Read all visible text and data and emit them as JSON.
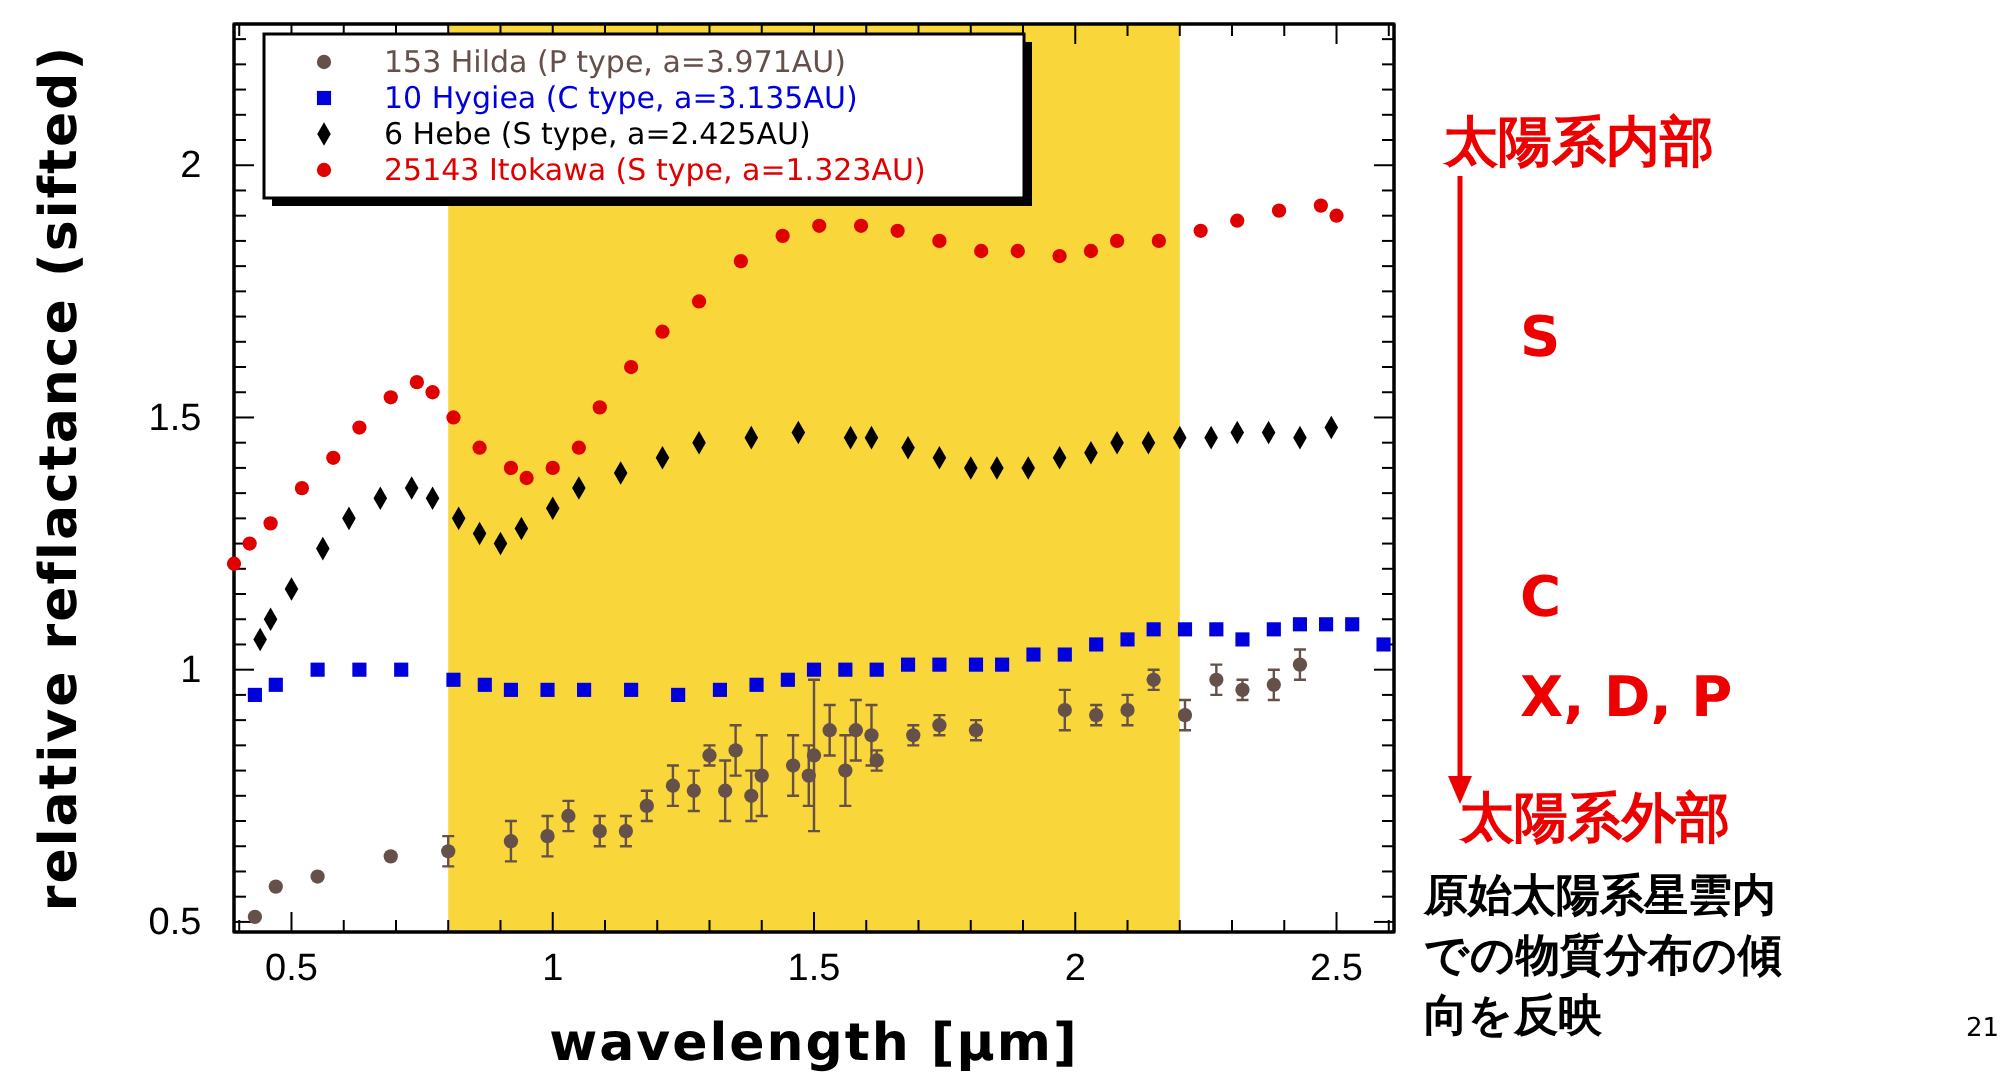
{
  "chart_data": {
    "type": "scatter",
    "xlabel": "wavelength [µm]",
    "ylabel": "relative reflactance (sifted)",
    "xlim": [
      0.39,
      2.61
    ],
    "ylim": [
      0.48,
      2.28
    ],
    "xticks": [
      {
        "value": 0.4,
        "label": null
      },
      0.5,
      {
        "value": 0.6,
        "label": null
      },
      {
        "value": 0.7,
        "label": null
      },
      {
        "value": 0.8,
        "label": null
      },
      {
        "value": 0.9,
        "label": null
      },
      1,
      {
        "value": 1.1,
        "label": null
      },
      {
        "value": 1.2,
        "label": null
      },
      {
        "value": 1.3,
        "label": null
      },
      {
        "value": 1.4,
        "label": null
      },
      1.5,
      {
        "value": 1.6,
        "label": null
      },
      {
        "value": 1.7,
        "label": null
      },
      {
        "value": 1.8,
        "label": null
      },
      {
        "value": 1.9,
        "label": null
      },
      2,
      {
        "value": 2.1,
        "label": null
      },
      {
        "value": 2.2,
        "label": null
      },
      {
        "value": 2.3,
        "label": null
      },
      {
        "value": 2.4,
        "label": null
      },
      2.5,
      {
        "value": 2.6,
        "label": null
      }
    ],
    "yticks": [
      0.5,
      {
        "value": 0.55,
        "label": null
      },
      {
        "value": 0.6,
        "label": null
      },
      {
        "value": 0.65,
        "label": null
      },
      {
        "value": 0.7,
        "label": null
      },
      {
        "value": 0.75,
        "label": null
      },
      {
        "value": 0.8,
        "label": null
      },
      {
        "value": 0.85,
        "label": null
      },
      {
        "value": 0.9,
        "label": null
      },
      {
        "value": 0.95,
        "label": null
      },
      1,
      {
        "value": 1.05,
        "label": null
      },
      {
        "value": 1.1,
        "label": null
      },
      {
        "value": 1.15,
        "label": null
      },
      {
        "value": 1.2,
        "label": null
      },
      {
        "value": 1.25,
        "label": null
      },
      {
        "value": 1.3,
        "label": null
      },
      {
        "value": 1.35,
        "label": null
      },
      {
        "value": 1.4,
        "label": null
      },
      {
        "value": 1.45,
        "label": null
      },
      1.5,
      {
        "value": 1.55,
        "label": null
      },
      {
        "value": 1.6,
        "label": null
      },
      {
        "value": 1.65,
        "label": null
      },
      {
        "value": 1.7,
        "label": null
      },
      {
        "value": 1.75,
        "label": null
      },
      {
        "value": 1.8,
        "label": null
      },
      {
        "value": 1.85,
        "label": null
      },
      {
        "value": 1.9,
        "label": null
      },
      {
        "value": 1.95,
        "label": null
      },
      2,
      {
        "value": 2.05,
        "label": null
      },
      {
        "value": 2.1,
        "label": null
      },
      {
        "value": 2.15,
        "label": null
      },
      {
        "value": 2.2,
        "label": null
      },
      {
        "value": 2.25,
        "label": null
      }
    ],
    "legend": "top left",
    "bands": [
      {
        "axis": "x",
        "from": 0.8,
        "to": 2.2,
        "color": "#f9d63a"
      }
    ],
    "series": [
      {
        "name": "153 Hilda (P type, a=3.971AU)",
        "color": "#65504a",
        "marker": "circle",
        "x": [
          0.43,
          0.47,
          0.55,
          0.69,
          0.8,
          0.92,
          0.99,
          1.03,
          1.09,
          1.14,
          1.18,
          1.23,
          1.27,
          1.3,
          1.33,
          1.35,
          1.38,
          1.4,
          1.46,
          1.49,
          1.5,
          1.53,
          1.56,
          1.58,
          1.61,
          1.62,
          1.69,
          1.74,
          1.81,
          1.98,
          2.04,
          2.1,
          2.15,
          2.21,
          2.27,
          2.32,
          2.38,
          2.43
        ],
        "values": [
          0.51,
          0.57,
          0.59,
          0.63,
          0.64,
          0.66,
          0.67,
          0.71,
          0.68,
          0.68,
          0.73,
          0.77,
          0.76,
          0.83,
          0.76,
          0.84,
          0.75,
          0.79,
          0.81,
          0.79,
          0.83,
          0.88,
          0.8,
          0.88,
          0.87,
          0.82,
          0.87,
          0.89,
          0.88,
          0.92,
          0.91,
          0.92,
          0.98,
          0.91,
          0.98,
          0.96,
          0.97,
          1.01
        ],
        "errors": [
          null,
          null,
          null,
          null,
          0.03,
          0.04,
          0.04,
          0.03,
          0.03,
          0.03,
          0.03,
          0.04,
          0.04,
          0.02,
          0.06,
          0.05,
          0.05,
          0.08,
          0.06,
          0.06,
          0.15,
          0.05,
          0.07,
          0.06,
          0.06,
          0.02,
          0.02,
          0.02,
          0.02,
          0.04,
          0.02,
          0.03,
          0.02,
          0.03,
          0.03,
          0.02,
          0.03,
          0.03
        ]
      },
      {
        "name": "10 Hygiea (C type, a=3.135AU)",
        "color": "#0000dd",
        "marker": "square",
        "x": [
          0.43,
          0.47,
          0.55,
          0.63,
          0.71,
          0.81,
          0.87,
          0.92,
          0.99,
          1.06,
          1.15,
          1.24,
          1.32,
          1.39,
          1.45,
          1.5,
          1.56,
          1.62,
          1.68,
          1.74,
          1.81,
          1.86,
          1.92,
          1.98,
          2.04,
          2.1,
          2.15,
          2.21,
          2.27,
          2.32,
          2.38,
          2.43,
          2.48,
          2.53,
          2.59
        ],
        "values": [
          0.95,
          0.97,
          1.0,
          1.0,
          1.0,
          0.98,
          0.97,
          0.96,
          0.96,
          0.96,
          0.96,
          0.95,
          0.96,
          0.97,
          0.98,
          1.0,
          1.0,
          1.0,
          1.01,
          1.01,
          1.01,
          1.01,
          1.03,
          1.03,
          1.05,
          1.06,
          1.08,
          1.08,
          1.08,
          1.06,
          1.08,
          1.09,
          1.09,
          1.09,
          1.05
        ]
      },
      {
        "name": "6 Hebe (S type, a=2.425AU)",
        "color": "#000000",
        "marker": "diamond",
        "x": [
          0.44,
          0.46,
          0.5,
          0.56,
          0.61,
          0.67,
          0.73,
          0.77,
          0.82,
          0.86,
          0.9,
          0.94,
          1.0,
          1.05,
          1.13,
          1.21,
          1.28,
          1.38,
          1.47,
          1.57,
          1.61,
          1.68,
          1.74,
          1.8,
          1.85,
          1.91,
          1.97,
          2.03,
          2.08,
          2.14,
          2.2,
          2.26,
          2.31,
          2.37,
          2.43,
          2.49
        ],
        "values": [
          1.06,
          1.1,
          1.16,
          1.24,
          1.3,
          1.34,
          1.36,
          1.34,
          1.3,
          1.27,
          1.25,
          1.28,
          1.32,
          1.36,
          1.39,
          1.42,
          1.45,
          1.46,
          1.47,
          1.46,
          1.46,
          1.44,
          1.42,
          1.4,
          1.4,
          1.4,
          1.42,
          1.43,
          1.45,
          1.45,
          1.46,
          1.46,
          1.47,
          1.47,
          1.46,
          1.48
        ]
      },
      {
        "name": "25143 Itokawa (S type, a=1.323AU)",
        "color": "#e00000",
        "marker": "circle",
        "x": [
          0.39,
          0.42,
          0.46,
          0.52,
          0.58,
          0.63,
          0.69,
          0.74,
          0.77,
          0.81,
          0.86,
          0.92,
          0.95,
          1.0,
          1.05,
          1.09,
          1.15,
          1.21,
          1.28,
          1.36,
          1.44,
          1.51,
          1.59,
          1.66,
          1.74,
          1.82,
          1.89,
          1.97,
          2.03,
          2.08,
          2.16,
          2.24,
          2.31,
          2.39,
          2.47,
          2.5
        ],
        "values": [
          1.21,
          1.25,
          1.29,
          1.36,
          1.42,
          1.48,
          1.54,
          1.57,
          1.55,
          1.5,
          1.44,
          1.4,
          1.38,
          1.4,
          1.44,
          1.52,
          1.6,
          1.67,
          1.73,
          1.81,
          1.86,
          1.88,
          1.88,
          1.87,
          1.85,
          1.83,
          1.83,
          1.82,
          1.83,
          1.85,
          1.85,
          1.87,
          1.89,
          1.91,
          1.92,
          1.9
        ]
      }
    ],
    "annotations": [
      "太陽系内部",
      "S",
      "C",
      "X, D, P",
      "太陽系外部",
      "原始太陽系星雲内での物質分布の傾向を反映",
      "21"
    ]
  }
}
